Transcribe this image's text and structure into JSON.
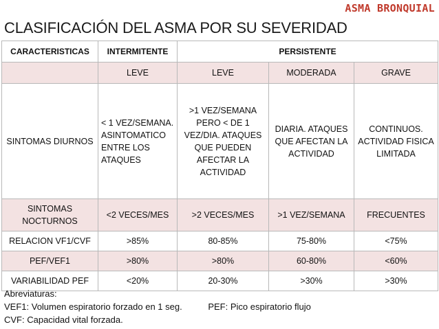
{
  "header": {
    "topic": "ASMA BRONQUIAL",
    "title": "CLASIFICACIÓN DEL ASMA POR SU SEVERIDAD"
  },
  "table": {
    "col_headers": {
      "caracteristicas": "CARACTERISTICAS",
      "intermitente": "INTERMITENTE",
      "persistente": "PERSISTENTE"
    },
    "sub_headers": [
      "LEVE",
      "LEVE",
      "MODERADA",
      "GRAVE"
    ],
    "rows": [
      {
        "label": "SINTOMAS DIURNOS",
        "cells": [
          "< 1 VEZ/SEMANA. ASINTOMATICO ENTRE LOS ATAQUES",
          ">1 VEZ/SEMANA PERO < DE 1 VEZ/DIA. ATAQUES QUE PUEDEN AFECTAR LA ACTIVIDAD",
          "DIARIA. ATAQUES QUE AFECTAN LA ACTIVIDAD",
          "CONTINUOS. ACTIVIDAD FISICA LIMITADA"
        ]
      },
      {
        "label": "SINTOMAS NOCTURNOS",
        "cells": [
          "<2 VECES/MES",
          ">2 VECES/MES",
          ">1 VEZ/SEMANA",
          "FRECUENTES"
        ]
      },
      {
        "label": "RELACION VF1/CVF",
        "cells": [
          ">85%",
          "80-85%",
          "75-80%",
          "<75%"
        ]
      },
      {
        "label": "PEF/VEF1",
        "cells": [
          ">80%",
          ">80%",
          "60-80%",
          "<60%"
        ]
      },
      {
        "label": "VARIABILIDAD PEF",
        "cells": [
          "<20%",
          "20-30%",
          ">30%",
          ">30%"
        ]
      }
    ]
  },
  "notes": {
    "heading": "Abreviaturas:",
    "vef1": "VEF1: Volumen espiratorio forzado en 1 seg.",
    "pef": "PEF: Pico espiratorio flujo",
    "cvf": "CVF: Capacidad vital forzada."
  }
}
